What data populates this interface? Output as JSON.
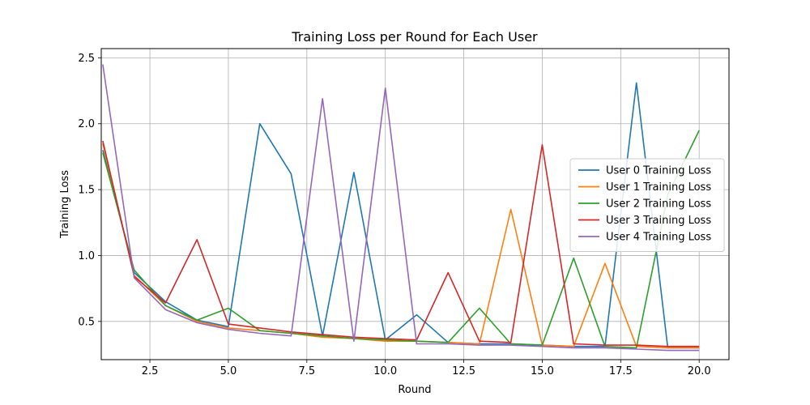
{
  "chart_data": {
    "type": "line",
    "title": "Training Loss per Round for Each User",
    "xlabel": "Round",
    "ylabel": "Training Loss",
    "xlim": [
      0.95,
      20.95
    ],
    "ylim": [
      0.21,
      2.57
    ],
    "xticks": [
      "2.5",
      "5.0",
      "7.5",
      "10.0",
      "12.5",
      "15.0",
      "17.5",
      "20.0"
    ],
    "yticks": [
      "0.5",
      "1.0",
      "1.5",
      "2.0",
      "2.5"
    ],
    "grid": true,
    "legend_position": "center-right",
    "x": [
      1,
      2,
      3,
      4,
      5,
      6,
      7,
      8,
      9,
      10,
      11,
      12,
      13,
      14,
      15,
      16,
      17,
      18,
      19,
      20
    ],
    "series": [
      {
        "name": "User 0 Training Loss",
        "color": "#1f77b4",
        "values": [
          1.8,
          0.87,
          0.65,
          0.51,
          0.46,
          2.0,
          1.62,
          0.39,
          1.63,
          0.36,
          0.55,
          0.34,
          0.33,
          0.33,
          0.32,
          0.31,
          0.31,
          2.31,
          0.3,
          0.3
        ]
      },
      {
        "name": "User 1 Training Loss",
        "color": "#ff7f0e",
        "values": [
          1.85,
          0.85,
          0.62,
          0.5,
          0.45,
          0.43,
          0.41,
          0.38,
          0.37,
          0.35,
          0.35,
          0.34,
          0.33,
          1.35,
          0.32,
          0.31,
          0.94,
          0.31,
          0.3,
          0.3
        ]
      },
      {
        "name": "User 2 Training Loss",
        "color": "#2ca02c",
        "values": [
          1.78,
          0.89,
          0.62,
          0.51,
          0.6,
          0.43,
          0.41,
          0.39,
          0.37,
          0.36,
          0.35,
          0.34,
          0.6,
          0.33,
          0.32,
          0.98,
          0.31,
          0.3,
          1.46,
          1.95
        ]
      },
      {
        "name": "User 3 Training Loss",
        "color": "#d62728",
        "values": [
          1.87,
          0.84,
          0.64,
          1.12,
          0.48,
          0.45,
          0.42,
          0.4,
          0.38,
          0.37,
          0.36,
          0.87,
          0.35,
          0.34,
          1.84,
          0.33,
          0.32,
          0.32,
          0.31,
          0.31
        ]
      },
      {
        "name": "User 4 Training Loss",
        "color": "#9467bd",
        "values": [
          2.45,
          0.83,
          0.59,
          0.49,
          0.44,
          0.41,
          0.39,
          2.19,
          0.35,
          2.27,
          0.33,
          0.33,
          0.32,
          0.32,
          0.31,
          0.3,
          0.3,
          0.29,
          0.28,
          0.28
        ]
      }
    ]
  }
}
